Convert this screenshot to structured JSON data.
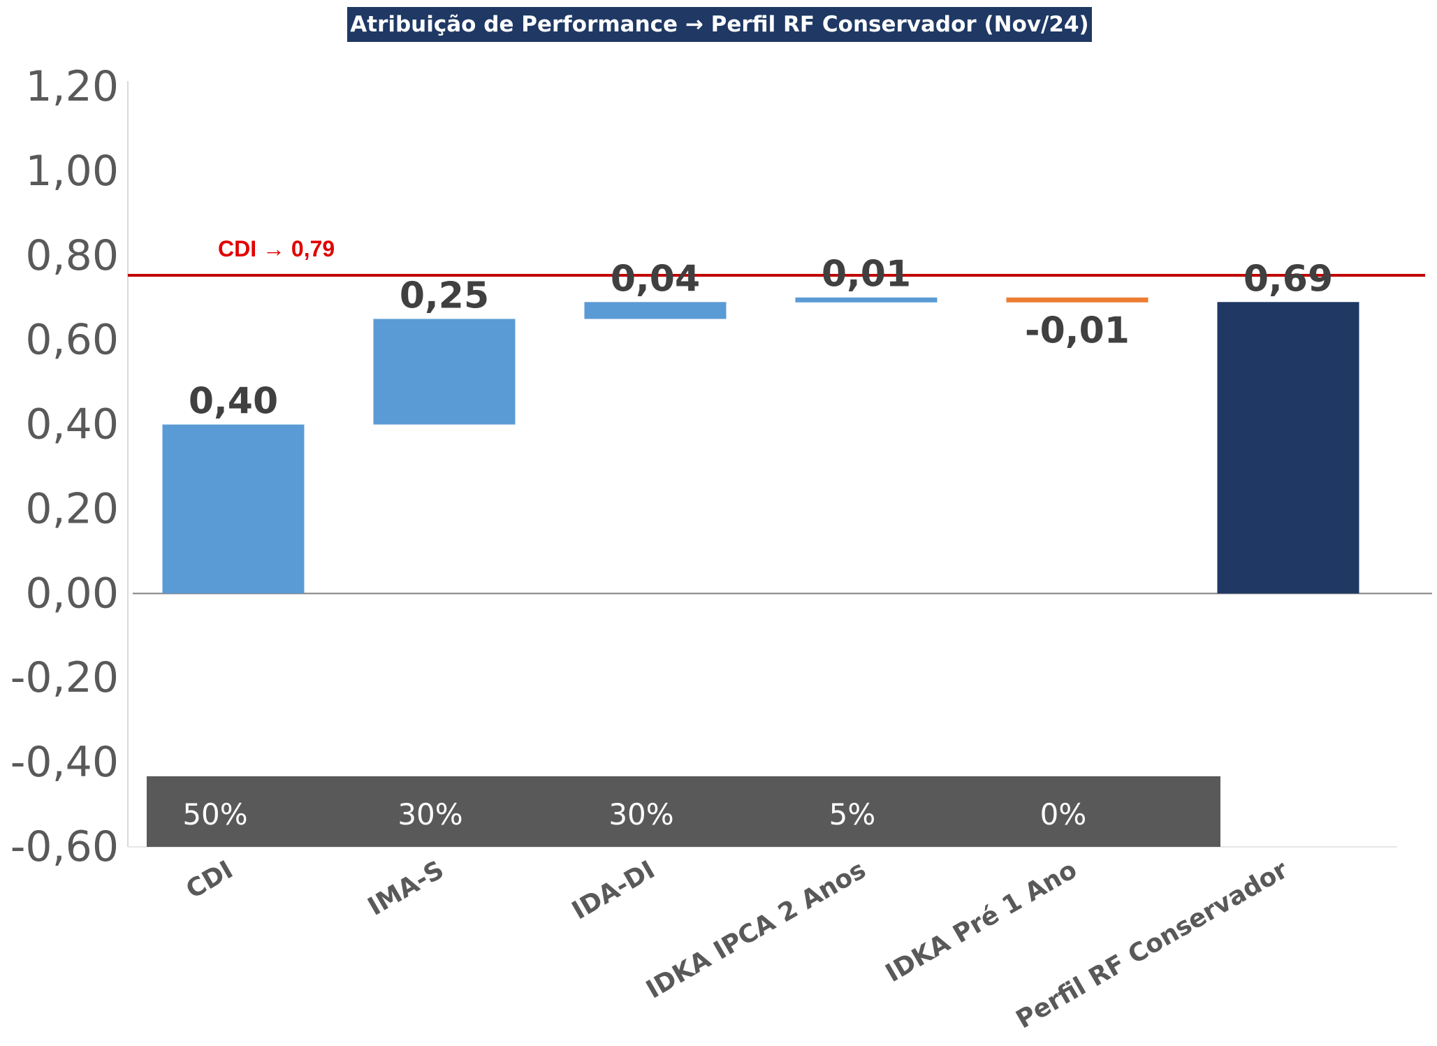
{
  "chart_data": {
    "type": "bar",
    "variant": "waterfall",
    "title": "Atribuição de Performance → Perfil RF Conservador (Nov/24)",
    "categories": [
      "CDI",
      "IMA-S",
      "IDA-DI",
      "IDKA IPCA 2 Anos",
      "IDKA Pré 1 Ano",
      "Perfil RF Conservador"
    ],
    "values": [
      0.4,
      0.25,
      0.04,
      0.01,
      -0.01,
      0.69
    ],
    "value_labels": [
      "0,40",
      "0,25",
      "0,04",
      "0,01",
      "-0,01",
      "0,69"
    ],
    "bar_kinds": [
      "increase",
      "increase",
      "increase",
      "increase",
      "decrease",
      "total"
    ],
    "bar_colors": {
      "increase": "#5b9bd5",
      "decrease": "#ed7d31",
      "total": "#1f3864"
    },
    "ylim": [
      -0.6,
      1.2
    ],
    "yticks": [
      1.2,
      1.0,
      0.8,
      0.6,
      0.4,
      0.2,
      0.0,
      -0.2,
      -0.4,
      -0.6
    ],
    "ytick_labels": [
      "1,20",
      "1,00",
      "0,80",
      "0,60",
      "0,40",
      "0,20",
      "0,00",
      "-0,20",
      "-0,40",
      "-0,60"
    ],
    "reference_line": {
      "label": "CDI → 0,79",
      "value": 0.79,
      "color": "#c00000"
    },
    "allocations": [
      "50%",
      "30%",
      "30%",
      "5%",
      "0%"
    ],
    "grid": false,
    "legend": "none"
  }
}
